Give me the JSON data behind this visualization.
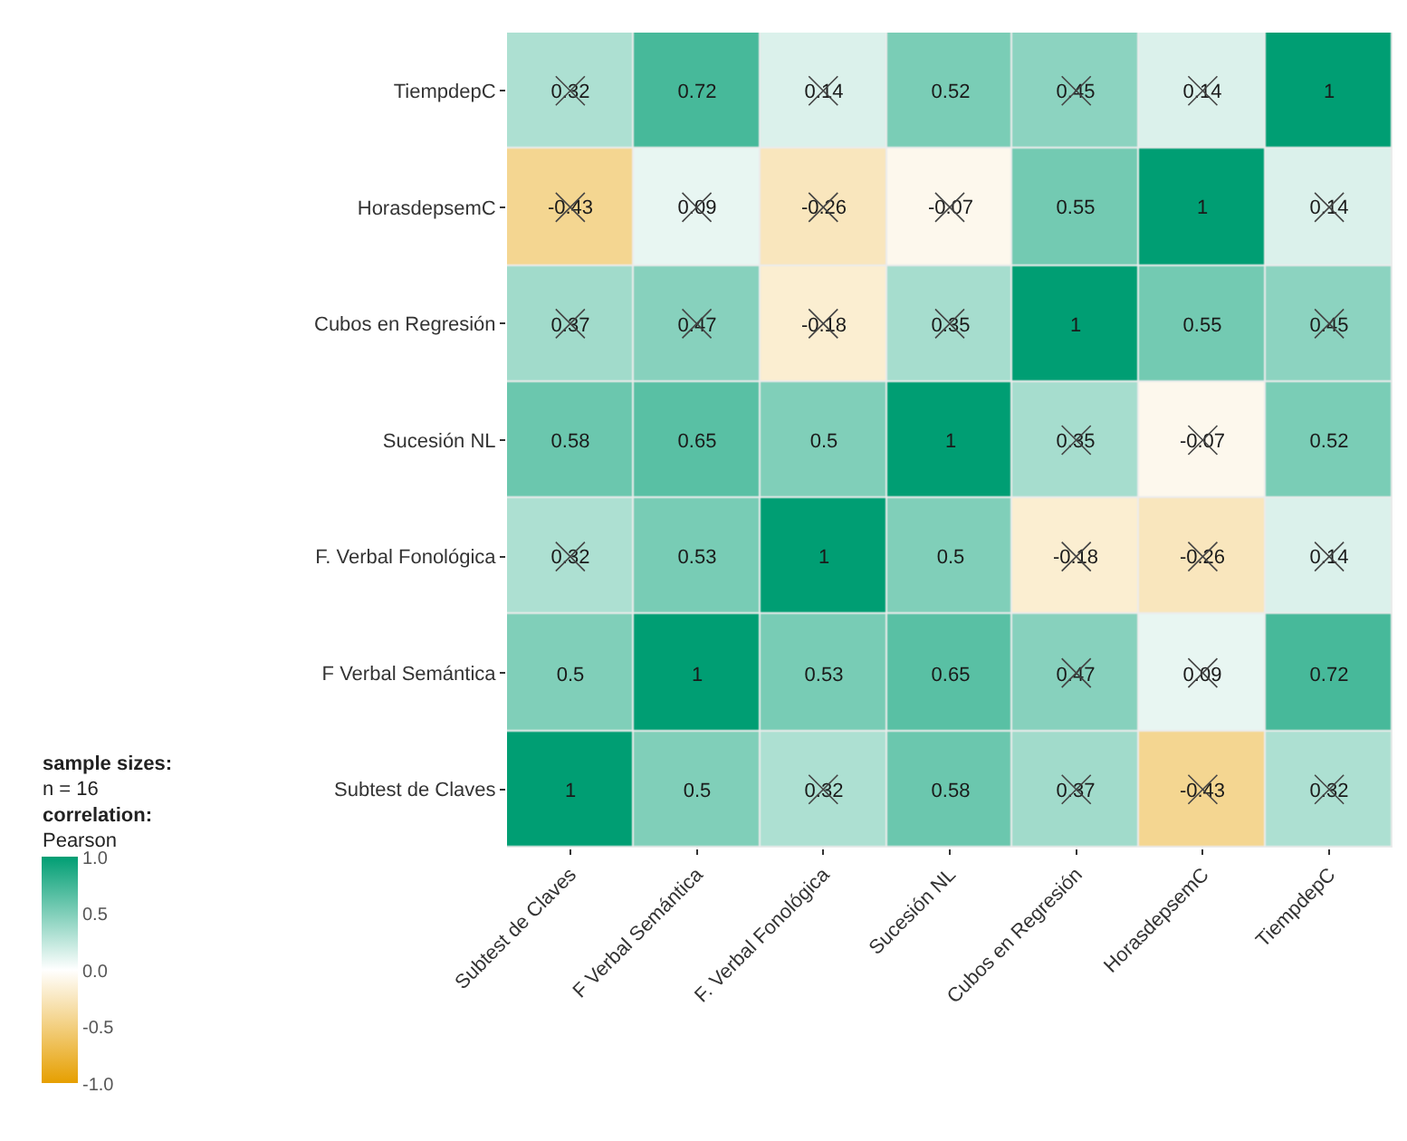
{
  "chart_data": {
    "type": "heatmap",
    "categories": [
      "Subtest de Claves",
      "F Verbal Semántica",
      "F. Verbal Fonológica",
      "Sucesión NL",
      "Cubos en Regresión",
      "HorasdepsemC",
      "TiempdepC"
    ],
    "y_categories": [
      "TiempdepC",
      "HorasdepsemC",
      "Cubos en Regresión",
      "Sucesión NL",
      "F. Verbal Fonológica",
      "F Verbal Semántica",
      "Subtest de Claves"
    ],
    "cells": [
      [
        0.32,
        0.72,
        0.14,
        0.52,
        0.45,
        0.14,
        1
      ],
      [
        -0.43,
        0.09,
        -0.26,
        -0.07,
        0.55,
        1,
        0.14
      ],
      [
        0.37,
        0.47,
        -0.18,
        0.35,
        1,
        0.55,
        0.45
      ],
      [
        0.58,
        0.65,
        0.5,
        1,
        0.35,
        -0.07,
        0.52
      ],
      [
        0.32,
        0.53,
        1,
        0.5,
        -0.18,
        -0.26,
        0.14
      ],
      [
        0.5,
        1,
        0.53,
        0.65,
        0.47,
        0.09,
        0.72
      ],
      [
        1,
        0.5,
        0.32,
        0.58,
        0.37,
        -0.43,
        0.32
      ]
    ],
    "clabel": "sample sizes:\nn = 16\ncorrelation:\nPearson",
    "clim": [
      -1,
      1
    ],
    "cticks": [
      {
        "value": 1,
        "label": "1.0"
      },
      {
        "value": 0.5,
        "label": "0.5"
      },
      {
        "value": 0,
        "label": "0.0"
      },
      {
        "value": -0.5,
        "label": "-0.5"
      },
      {
        "value": -1,
        "label": "-1.0"
      }
    ],
    "data_labels": true
  }
}
